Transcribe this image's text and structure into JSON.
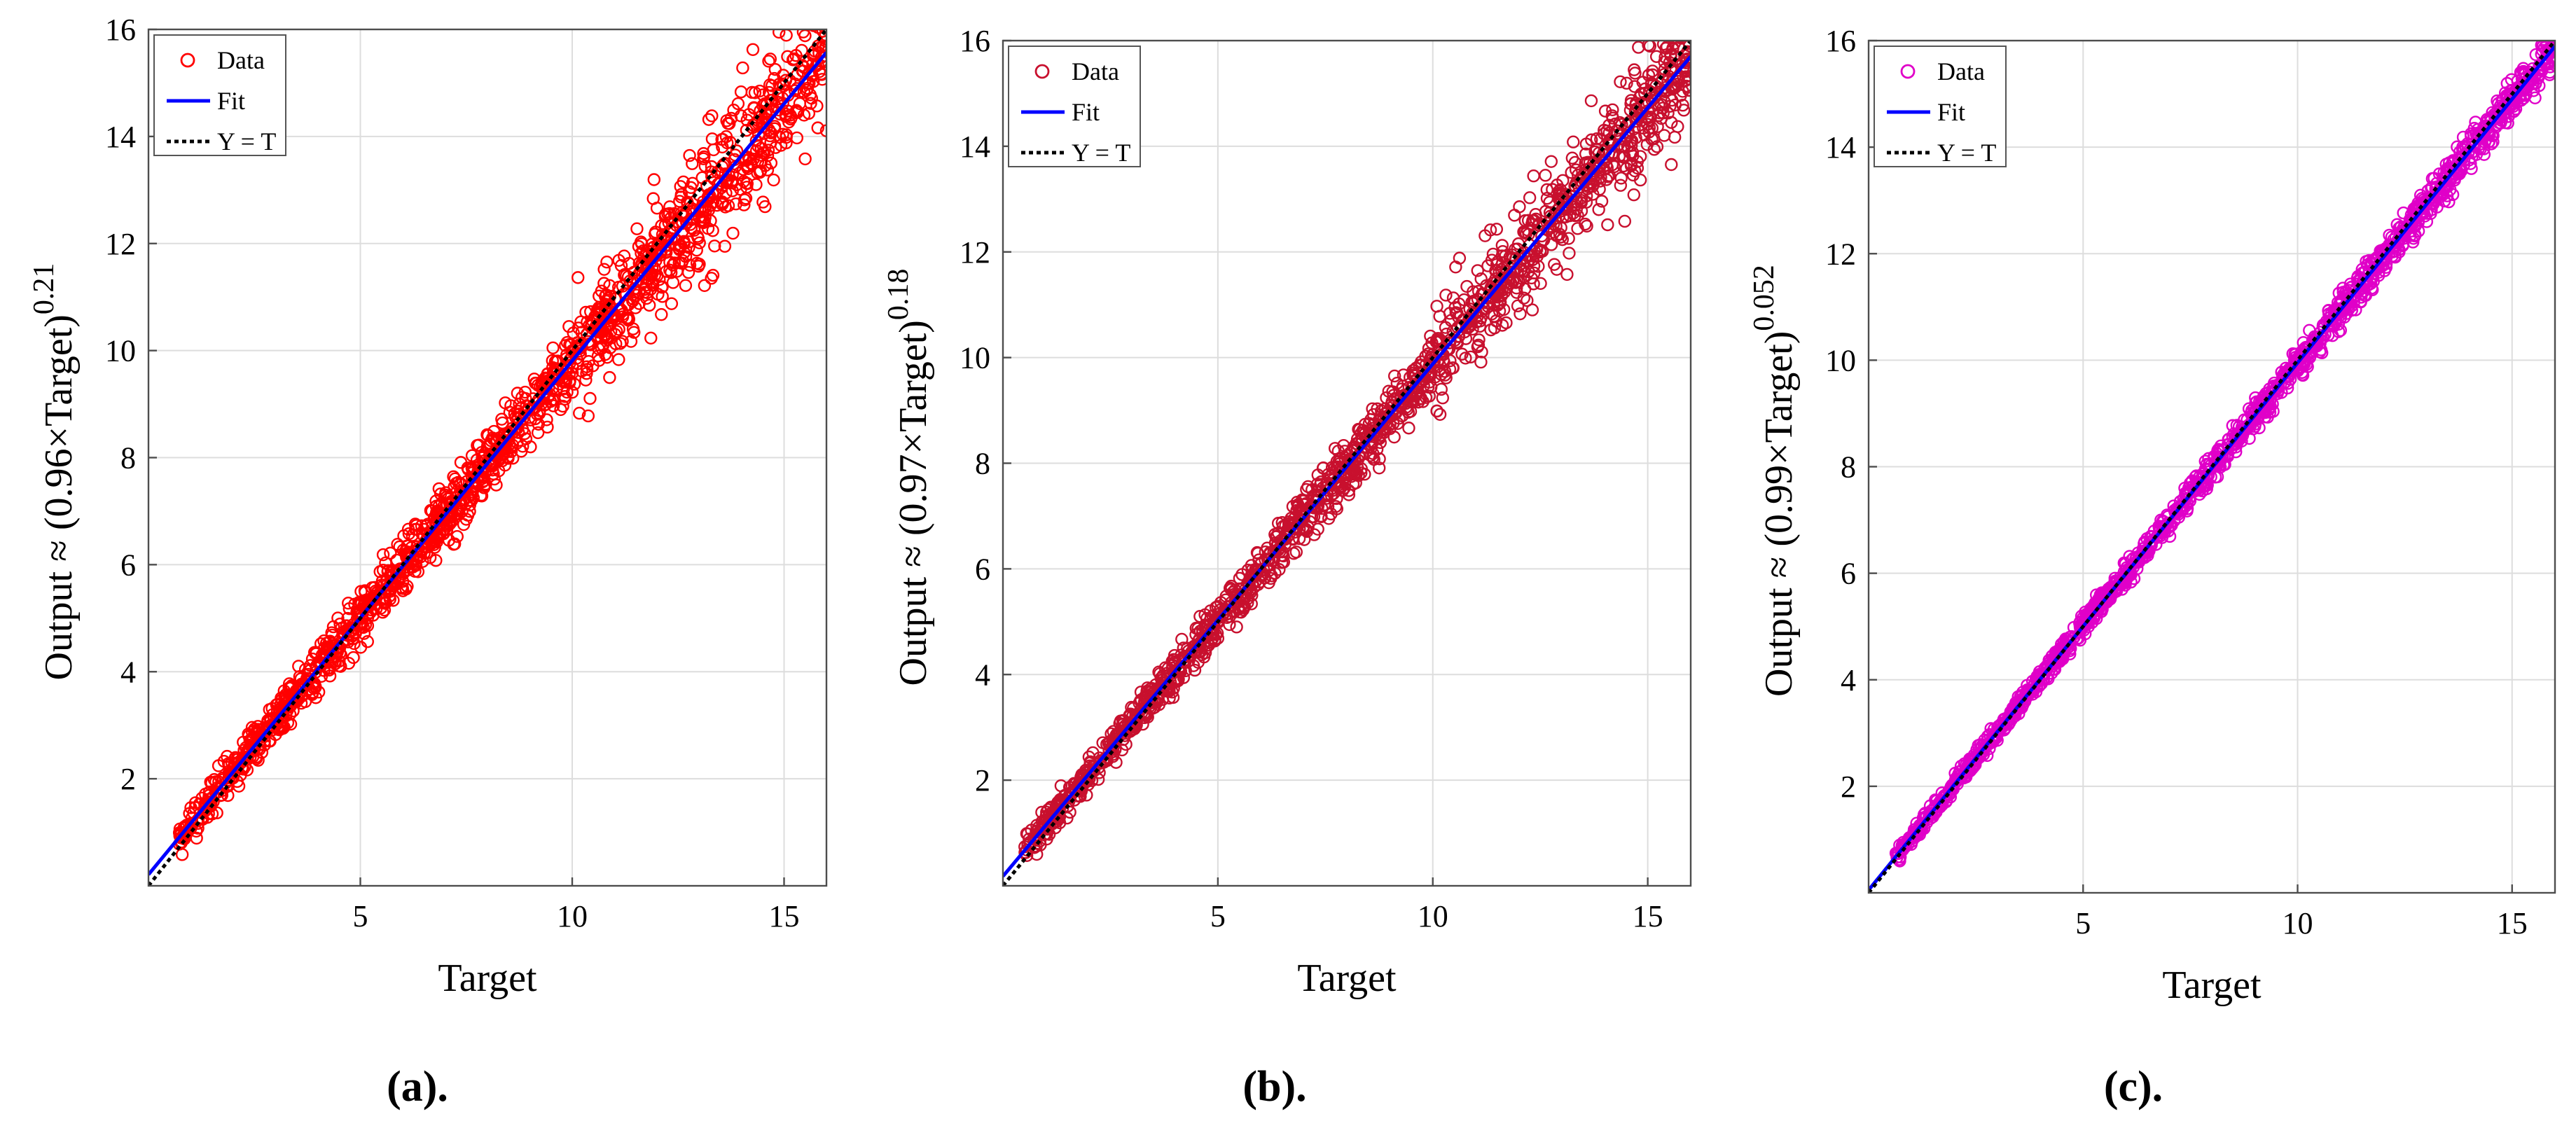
{
  "chart_data": [
    {
      "type": "scatter",
      "panel_label": "(a).",
      "xlabel": "Target",
      "ylabel_prefix": "Output ≈ (",
      "ylabel_slope": "0.96",
      "ylabel_target": "×Target)",
      "ylabel_exponent": "0.21",
      "xlim": [
        0,
        16
      ],
      "ylim": [
        0,
        16
      ],
      "xticks": [
        5,
        10,
        15
      ],
      "yticks": [
        2,
        4,
        6,
        8,
        10,
        12,
        14,
        16
      ],
      "grid": true,
      "legend_position": "top-left",
      "legend": [
        "Data",
        "Fit",
        "Y = T"
      ],
      "colors": {
        "data": "#ff0000",
        "fit": "#0000ff",
        "identity": "#000000"
      },
      "fit": {
        "slope": 0.96,
        "intercept": 0.21
      },
      "data_summary": {
        "n_points": 1500,
        "target_range": [
          0.7,
          16.0
        ],
        "spread": 0.7
      }
    },
    {
      "type": "scatter",
      "panel_label": "(b).",
      "xlabel": "Target",
      "ylabel_prefix": "Output ≈ (",
      "ylabel_slope": "0.97",
      "ylabel_target": "×Target)",
      "ylabel_exponent": "0.18",
      "xlim": [
        0,
        16
      ],
      "ylim": [
        0,
        16
      ],
      "xticks": [
        5,
        10,
        15
      ],
      "yticks": [
        2,
        4,
        6,
        8,
        10,
        12,
        14,
        16
      ],
      "grid": true,
      "legend_position": "top-left",
      "legend": [
        "Data",
        "Fit",
        "Y = T"
      ],
      "colors": {
        "data": "#c8102e",
        "fit": "#0000ff",
        "identity": "#000000"
      },
      "fit": {
        "slope": 0.97,
        "intercept": 0.18
      },
      "data_summary": {
        "n_points": 1500,
        "target_range": [
          0.5,
          16.0
        ],
        "spread": 0.6
      }
    },
    {
      "type": "scatter",
      "panel_label": "(c).",
      "xlabel": "Target",
      "ylabel_prefix": "Output ≈ (",
      "ylabel_slope": "0.99",
      "ylabel_target": "×Target)",
      "ylabel_exponent": "0.052",
      "xlim": [
        0,
        16
      ],
      "ylim": [
        0,
        16
      ],
      "xticks": [
        5,
        10,
        15
      ],
      "yticks": [
        2,
        4,
        6,
        8,
        10,
        12,
        14,
        16
      ],
      "grid": true,
      "legend_position": "top-left",
      "legend": [
        "Data",
        "Fit",
        "Y = T"
      ],
      "colors": {
        "data": "#e000c8",
        "fit": "#0000ff",
        "identity": "#000000"
      },
      "fit": {
        "slope": 0.99,
        "intercept": 0.052
      },
      "data_summary": {
        "n_points": 1500,
        "target_range": [
          0.6,
          16.0
        ],
        "spread": 0.3
      }
    }
  ]
}
